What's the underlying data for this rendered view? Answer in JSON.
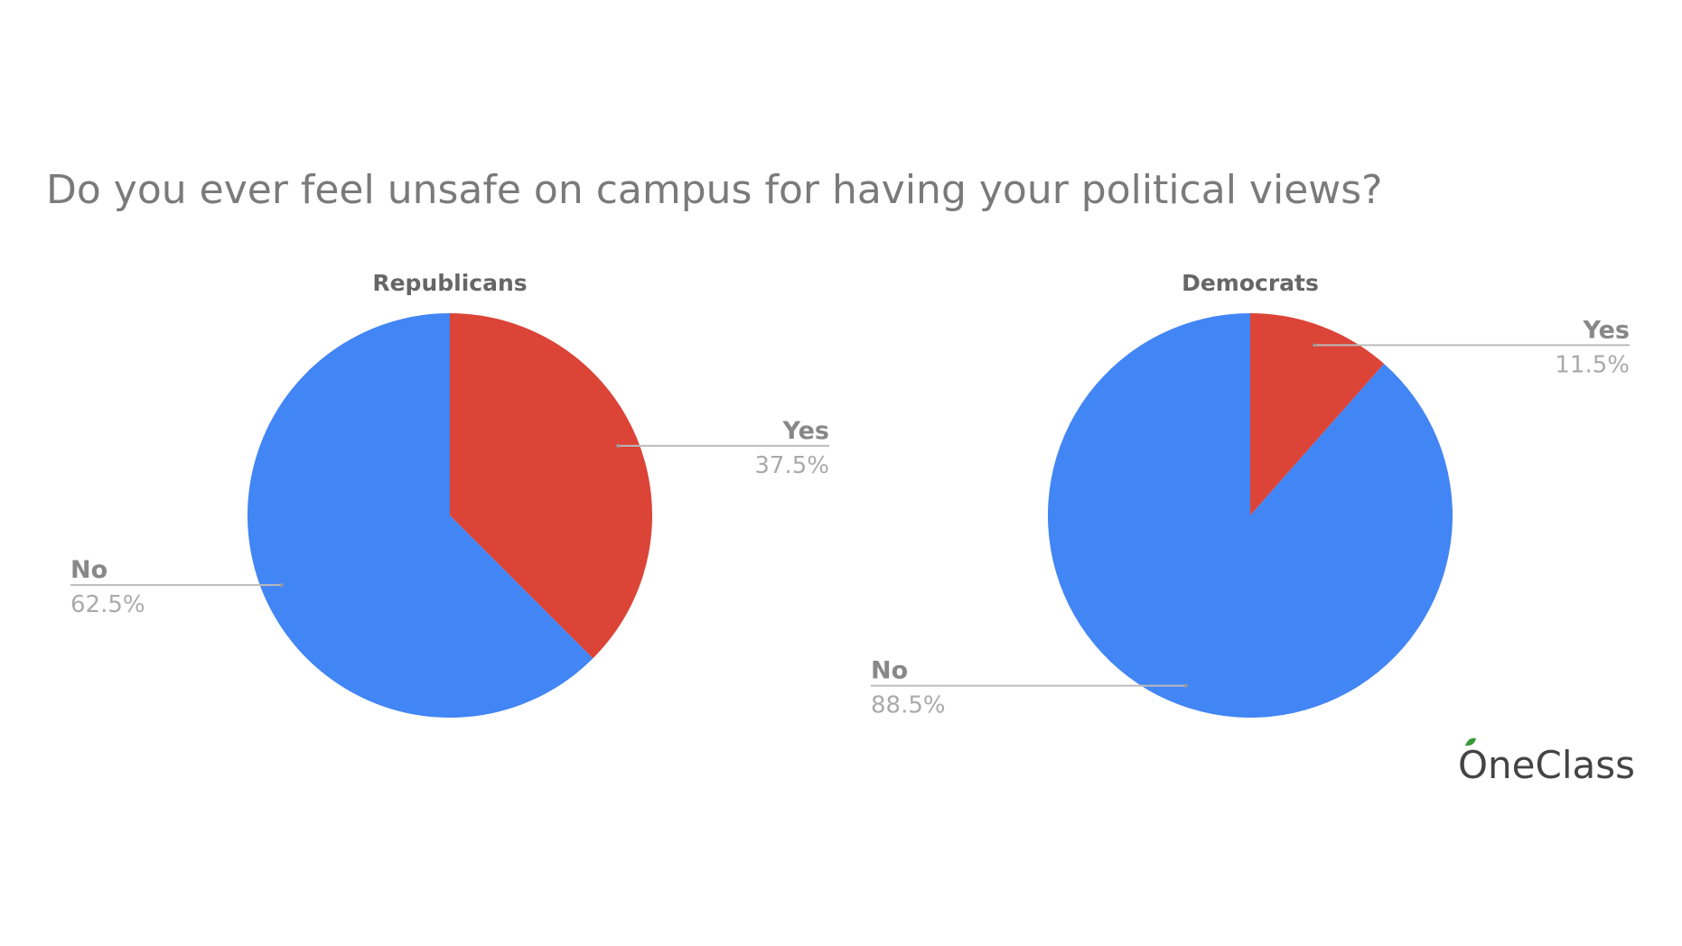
{
  "title": "Do you ever feel unsafe on campus for having your political views?",
  "watermark": "OneClass",
  "chart_data": [
    {
      "type": "pie",
      "title": "Republicans",
      "categories": [
        "Yes",
        "No"
      ],
      "values": [
        37.5,
        62.5
      ],
      "value_labels": [
        "37.5%",
        "62.5%"
      ],
      "colors": [
        "#db4437",
        "#4285f4"
      ]
    },
    {
      "type": "pie",
      "title": "Democrats",
      "categories": [
        "Yes",
        "No"
      ],
      "values": [
        11.5,
        88.5
      ],
      "value_labels": [
        "11.5%",
        "88.5%"
      ],
      "colors": [
        "#db4437",
        "#4285f4"
      ]
    }
  ]
}
